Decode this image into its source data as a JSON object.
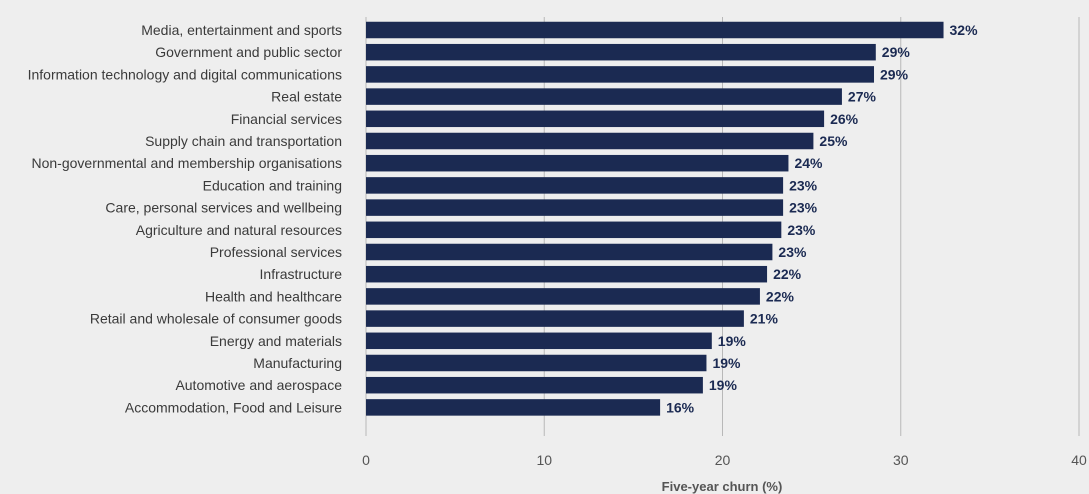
{
  "chart_data": {
    "type": "bar",
    "orientation": "horizontal",
    "categories": [
      "Media, entertainment and sports",
      "Government and public sector",
      "Information technology and digital communications",
      "Real estate",
      "Financial services",
      "Supply chain and transportation",
      "Non-governmental and membership organisations",
      "Education and training",
      "Care, personal services and wellbeing",
      "Agriculture and natural resources",
      "Professional services",
      "Infrastructure",
      "Health and healthcare",
      "Retail and wholesale of consumer goods",
      "Energy and materials",
      "Manufacturing",
      "Automotive and aerospace",
      "Accommodation, Food and Leisure"
    ],
    "values": [
      32.4,
      28.6,
      28.5,
      26.7,
      25.7,
      25.1,
      23.7,
      23.4,
      23.4,
      23.3,
      22.8,
      22.5,
      22.1,
      21.2,
      19.4,
      19.1,
      18.9,
      16.5
    ],
    "data_labels": [
      "32%",
      "29%",
      "29%",
      "27%",
      "26%",
      "25%",
      "24%",
      "23%",
      "23%",
      "23%",
      "23%",
      "22%",
      "22%",
      "21%",
      "19%",
      "19%",
      "19%",
      "16%"
    ],
    "title": "",
    "xlabel": "Five-year churn (%)",
    "ylabel": "",
    "xlim": [
      0,
      40
    ],
    "xticks": [
      0,
      10,
      20,
      30,
      40
    ],
    "grid": true,
    "bar_color": "#1b2a52",
    "label_color": "#1b2a52",
    "background": "#eeeeee"
  }
}
